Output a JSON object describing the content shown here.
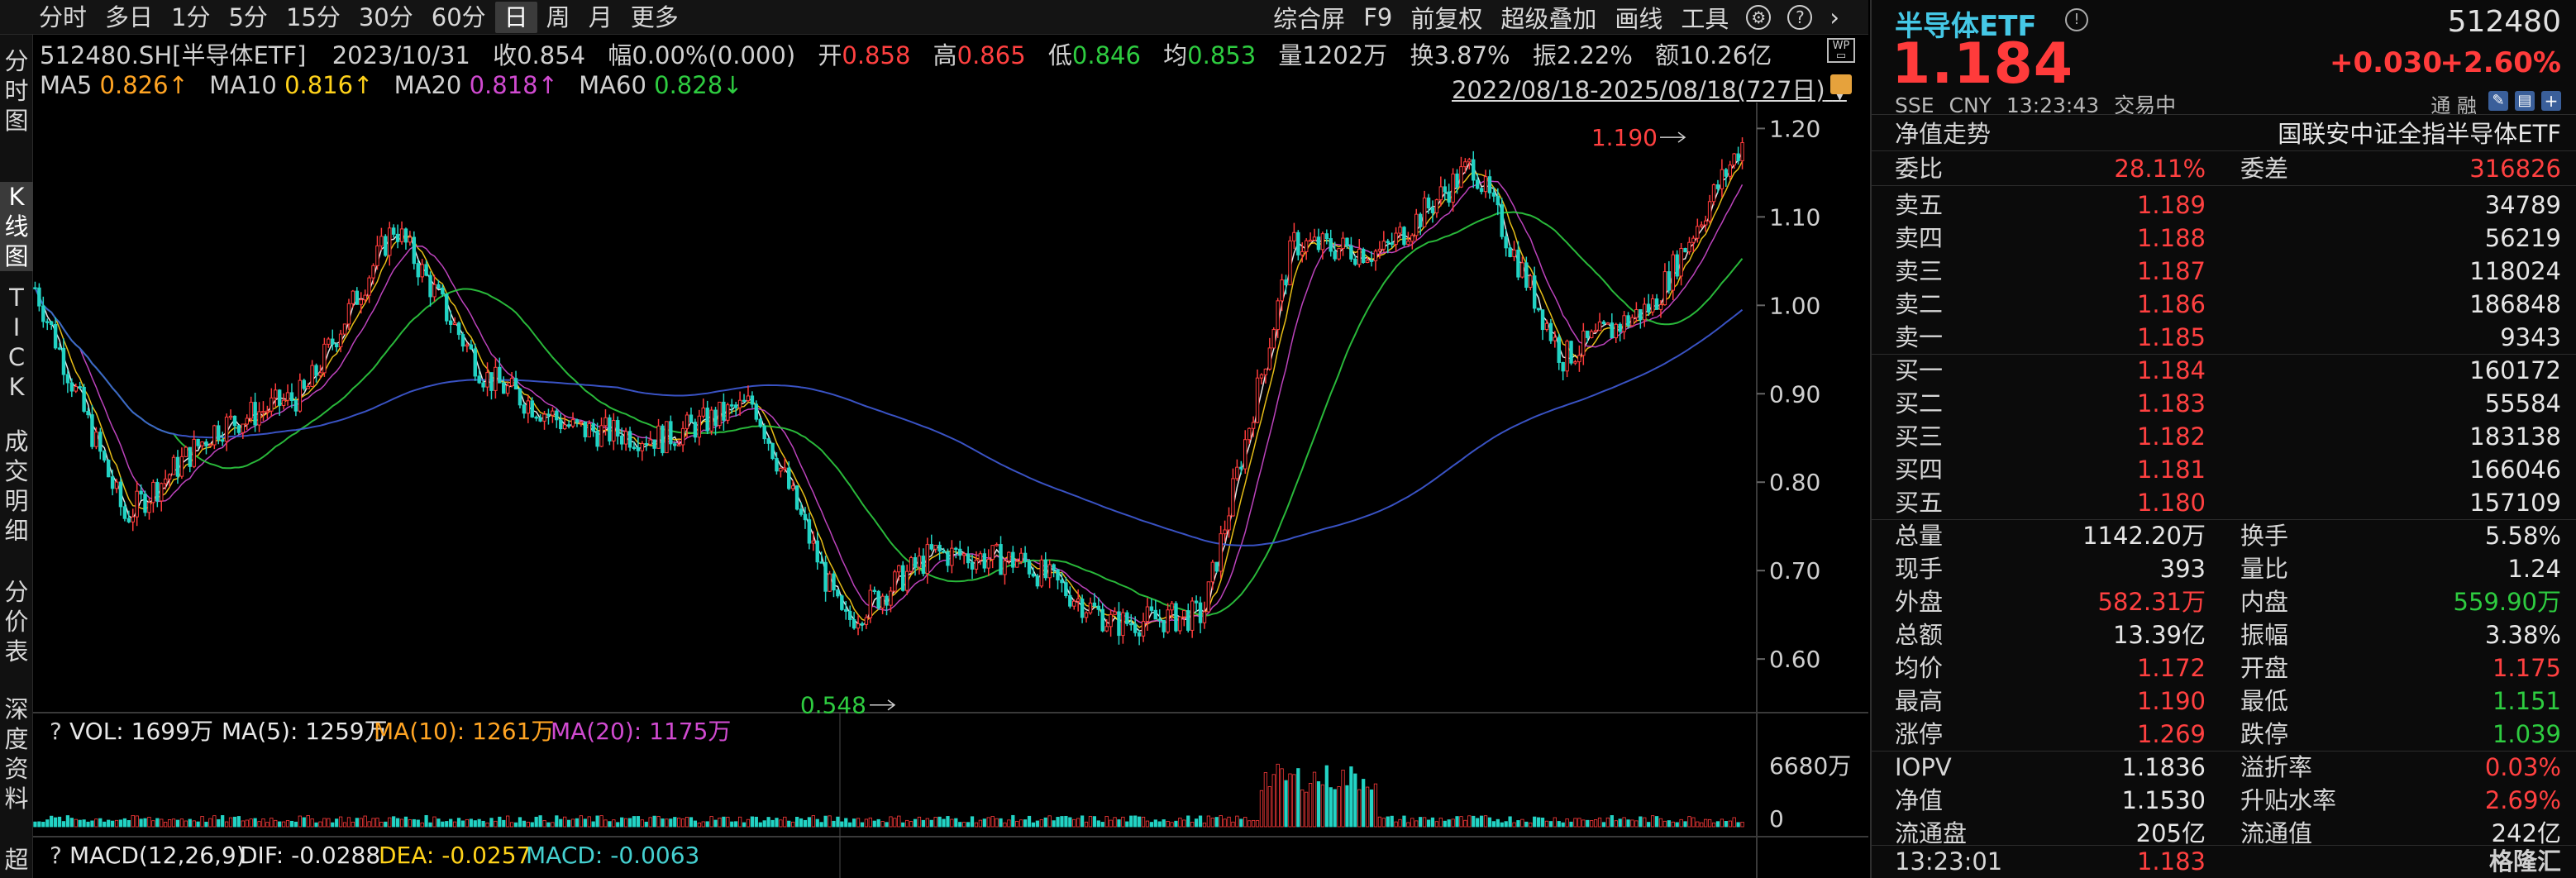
{
  "toolbar": {
    "periods": [
      "分时",
      "多日",
      "1分",
      "5分",
      "15分",
      "30分",
      "60分",
      "日",
      "周",
      "月",
      "更多"
    ],
    "active_period": "日",
    "tools": [
      "综合屏",
      "F9",
      "前复权",
      "超级叠加",
      "画线",
      "工具"
    ],
    "settings_icon": "gear-icon",
    "help_icon": "help-icon",
    "chevron": "›"
  },
  "left_tabs": [
    "分时图",
    "K线图",
    "TICK",
    "成交明细",
    "分价表",
    "深度资料",
    "超"
  ],
  "left_tabs_active": "K线图",
  "quote_line": {
    "code": "512480.SH[半导体ETF]",
    "date": "2023/10/31",
    "close_label": "收",
    "close": "0.854",
    "change_label": "幅",
    "change": "0.00%(0.000)",
    "open_label": "开",
    "open": "0.858",
    "high_label": "高",
    "high": "0.865",
    "low_label": "低",
    "low": "0.846",
    "avg_label": "均",
    "avg": "0.853",
    "volume": "量1202万",
    "turnover": "换3.87%",
    "amplitude": "振2.22%",
    "amount": "额10.26亿"
  },
  "ma_line": {
    "ma5": "MA5",
    "ma5_val": "0.826↑",
    "ma10": "MA10",
    "ma10_val": "0.816↑",
    "ma20": "MA20",
    "ma20_val": "0.818↑",
    "ma60": "MA60",
    "ma60_val": "0.828↓"
  },
  "range_label": "2022/08/18-2025/08/18(727日)",
  "chart_data": {
    "type": "candlestick",
    "title": "512480.SH[半导体ETF]",
    "y_ticks": [
      "1.20",
      "1.10",
      "1.00",
      "0.90",
      "0.80",
      "0.70",
      "0.60"
    ],
    "ylim": [
      0.53,
      1.22
    ],
    "max_label": "1.190",
    "min_label": "0.548",
    "x_range": [
      "2022/08/18",
      "2025/08/18"
    ],
    "approx_close_path": [
      {
        "date": "2022-08",
        "close": 1.02
      },
      {
        "date": "2022-10",
        "close": 0.76
      },
      {
        "date": "2022-12",
        "close": 0.86
      },
      {
        "date": "2023-02",
        "close": 0.9
      },
      {
        "date": "2023-04",
        "close": 1.09
      },
      {
        "date": "2023-06",
        "close": 0.92
      },
      {
        "date": "2023-08",
        "close": 0.86
      },
      {
        "date": "2023-10",
        "close": 0.85
      },
      {
        "date": "2023-12",
        "close": 0.89
      },
      {
        "date": "2024-02",
        "close": 0.64
      },
      {
        "date": "2024-04",
        "close": 0.72
      },
      {
        "date": "2024-06",
        "close": 0.71
      },
      {
        "date": "2024-08",
        "close": 0.64
      },
      {
        "date": "2024-09",
        "close": 0.65
      },
      {
        "date": "2024-10",
        "close": 1.07
      },
      {
        "date": "2024-12",
        "close": 1.06
      },
      {
        "date": "2025-02",
        "close": 1.16
      },
      {
        "date": "2025-04",
        "close": 0.94
      },
      {
        "date": "2025-06",
        "close": 1.0
      },
      {
        "date": "2025-08",
        "close": 1.184
      }
    ],
    "volume_panel": {
      "label": "VOL: 1699万",
      "ma5": "MA(5): 1259万",
      "ma10": "MA(10): 1261万",
      "ma20": "MA(20): 1175万",
      "max_tick": "6680万",
      "zero_tick": "0"
    },
    "macd_panel": {
      "label": "MACD(12,26,9)",
      "dif": "DIF: -0.0288",
      "dea": "DEA: -0.0257",
      "macd": "MACD: -0.0063"
    }
  },
  "right_panel": {
    "name": "半导体ETF",
    "code": "512480",
    "price": "1.184",
    "change": "+0.030",
    "change_pct": "+2.60%",
    "exchange": "SSE",
    "currency": "CNY",
    "time": "13:23:43",
    "status": "交易中",
    "tongrong": "通 融",
    "nav_tab": "净值走势",
    "index_name": "国联安中证全指半导体ETF",
    "weibi_label": "委比",
    "weibi": "28.11%",
    "weicha_label": "委差",
    "weicha": "316826",
    "asks": [
      {
        "label": "卖五",
        "price": "1.189",
        "qty": "34789"
      },
      {
        "label": "卖四",
        "price": "1.188",
        "qty": "56219"
      },
      {
        "label": "卖三",
        "price": "1.187",
        "qty": "118024"
      },
      {
        "label": "卖二",
        "price": "1.186",
        "qty": "186848"
      },
      {
        "label": "卖一",
        "price": "1.185",
        "qty": "9343"
      }
    ],
    "bids": [
      {
        "label": "买一",
        "price": "1.184",
        "qty": "160172"
      },
      {
        "label": "买二",
        "price": "1.183",
        "qty": "55584"
      },
      {
        "label": "买三",
        "price": "1.182",
        "qty": "183138"
      },
      {
        "label": "买四",
        "price": "1.181",
        "qty": "166046"
      },
      {
        "label": "买五",
        "price": "1.180",
        "qty": "157109"
      }
    ],
    "stats": [
      {
        "l1": "总量",
        "v1": "1142.20万",
        "c1": "white",
        "l2": "换手",
        "v2": "5.58%",
        "c2": "white"
      },
      {
        "l1": "现手",
        "v1": "393",
        "c1": "white",
        "l2": "量比",
        "v2": "1.24",
        "c2": "white"
      },
      {
        "l1": "外盘",
        "v1": "582.31万",
        "c1": "red",
        "l2": "内盘",
        "v2": "559.90万",
        "c2": "green"
      },
      {
        "l1": "总额",
        "v1": "13.39亿",
        "c1": "white",
        "l2": "振幅",
        "v2": "3.38%",
        "c2": "white"
      },
      {
        "l1": "均价",
        "v1": "1.172",
        "c1": "red",
        "l2": "开盘",
        "v2": "1.175",
        "c2": "red"
      },
      {
        "l1": "最高",
        "v1": "1.190",
        "c1": "red",
        "l2": "最低",
        "v2": "1.151",
        "c2": "green"
      },
      {
        "l1": "涨停",
        "v1": "1.269",
        "c1": "red",
        "l2": "跌停",
        "v2": "1.039",
        "c2": "green"
      },
      {
        "l1": "IOPV",
        "v1": "1.1836",
        "c1": "white",
        "l2": "溢折率",
        "v2": "0.03%",
        "c2": "red"
      },
      {
        "l1": "净值",
        "v1": "1.1530",
        "c1": "white",
        "l2": "升贴水率",
        "v2": "2.69%",
        "c2": "red"
      },
      {
        "l1": "流通盘",
        "v1": "205亿",
        "c1": "white",
        "l2": "流通值",
        "v2": "242亿",
        "c2": "white"
      }
    ],
    "last_tick_time": "13:23:01",
    "last_tick_price": "1.183",
    "logo": "格隆汇"
  }
}
